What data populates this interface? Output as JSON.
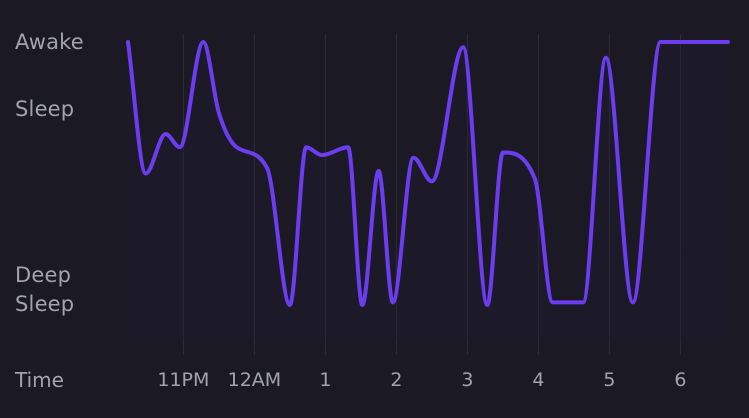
{
  "chart_data": {
    "type": "area",
    "title": "",
    "xlabel": "Time",
    "ylabel": "",
    "y_levels": [
      "Awake",
      "Sleep",
      "Deep Sleep"
    ],
    "y_tick_labels": [
      {
        "label": "Awake",
        "value": 1.0
      },
      {
        "label": "Sleep",
        "value": 0.8
      },
      {
        "label": "Deep Sleep",
        "value": 0.0
      }
    ],
    "ylim": [
      0.0,
      1.0
    ],
    "x_tick_labels": [
      {
        "label": "11PM",
        "value": 23.0
      },
      {
        "label": "12AM",
        "value": 24.0
      },
      {
        "label": "1",
        "value": 25.0
      },
      {
        "label": "2",
        "value": 26.0
      },
      {
        "label": "3",
        "value": 27.0
      },
      {
        "label": "4",
        "value": 28.0
      },
      {
        "label": "5",
        "value": 29.0
      },
      {
        "label": "6",
        "value": 30.0
      }
    ],
    "xlim": [
      22.22,
      30.67
    ],
    "grid": {
      "vertical": true,
      "horizontal": false
    },
    "legend": "none",
    "colors": {
      "background": "#1b1a24",
      "gradient_top": "#5de3b2",
      "gradient_mid": "#6a9ee6",
      "gradient_bottom": "#6c3cf0",
      "gridline": "#2e2c3a",
      "label": "#a3a3ab"
    },
    "series": [
      {
        "x": [
          22.22,
          22.47,
          22.75,
          22.95,
          23.28,
          23.5,
          23.75,
          24.18,
          24.5,
          24.73,
          24.95,
          25.32,
          25.52,
          25.75,
          25.95,
          26.24,
          26.5,
          26.94,
          27.28,
          27.5,
          27.95,
          28.2,
          28.63,
          28.95,
          29.33,
          29.72,
          29.97,
          30.42,
          30.67
        ],
        "y": [
          1.0,
          0.5,
          0.65,
          0.6,
          1.0,
          0.73,
          0.6,
          0.52,
          0.0,
          0.6,
          0.57,
          0.6,
          0.0,
          0.51,
          0.01,
          0.56,
          0.47,
          0.98,
          0.0,
          0.58,
          0.48,
          0.01,
          0.01,
          0.94,
          0.01,
          1.0,
          1.0,
          1.0,
          1.0
        ]
      }
    ]
  }
}
